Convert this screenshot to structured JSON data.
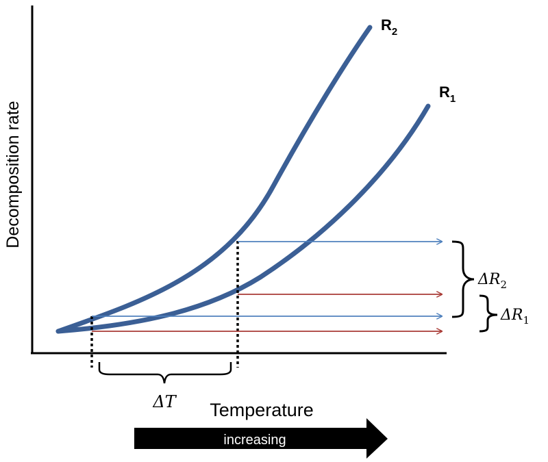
{
  "diagram": {
    "ylabel": "Decomposition rate",
    "xlabel": "Temperature",
    "curves": [
      {
        "label": "R",
        "subscript": "2"
      },
      {
        "label": "R",
        "subscript": "1"
      }
    ],
    "delta_r2": {
      "symbol": "ΔR",
      "subscript": "2"
    },
    "delta_r1": {
      "symbol": "ΔR",
      "subscript": "1"
    },
    "delta_t": "ΔT",
    "arrow_label": "increasing",
    "colors": {
      "curve": "#3B5F95",
      "blue_arrow": "#4F81BD",
      "red_arrow": "#A83A35",
      "axis": "#000000"
    }
  }
}
